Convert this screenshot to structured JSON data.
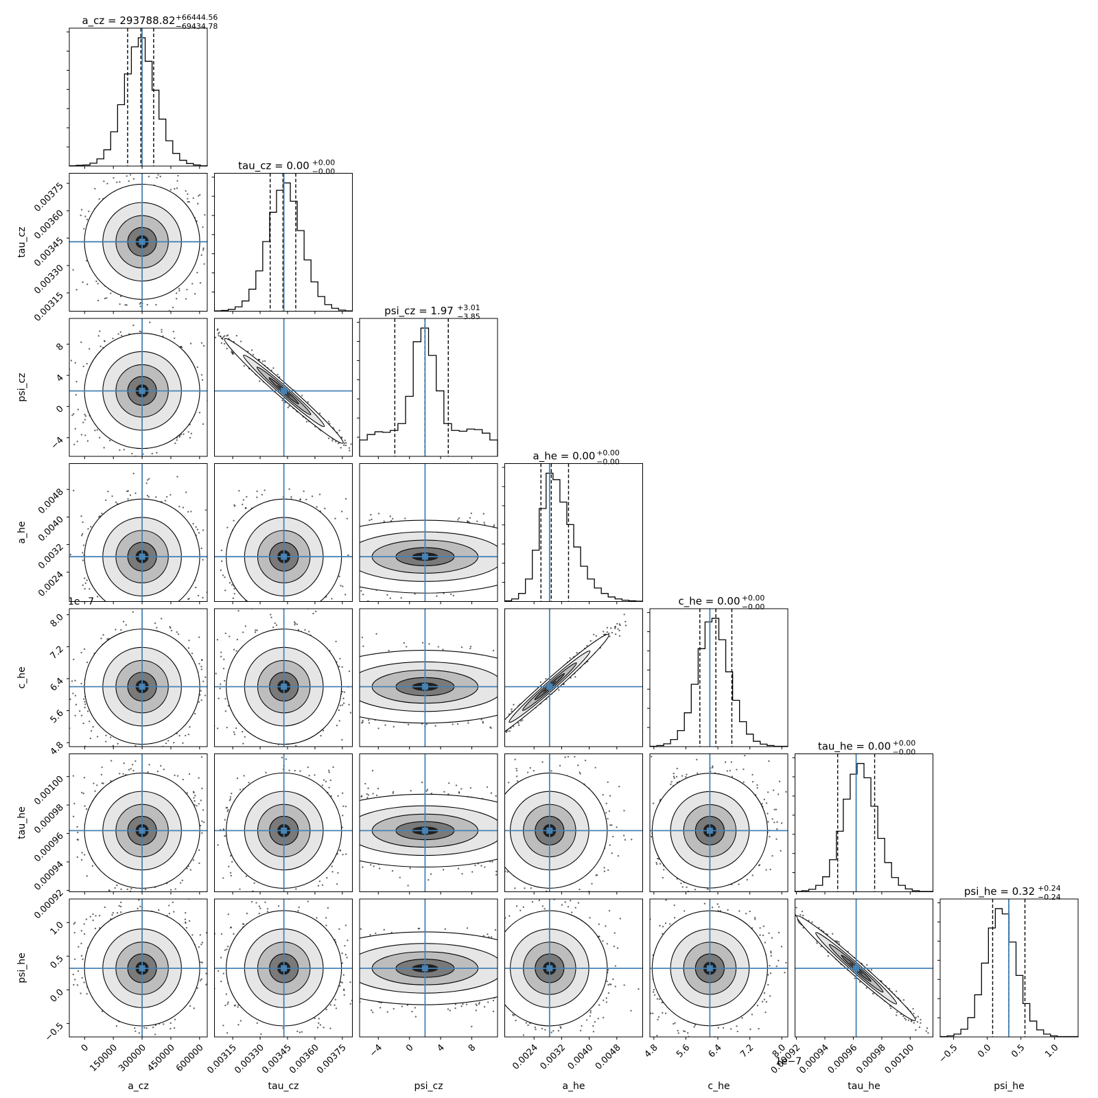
{
  "chart_data": {
    "type": "scatter",
    "plot_kind": "corner",
    "truth_color": "#4682b4",
    "params": [
      {
        "name": "a_cz",
        "label": "a_cz",
        "title": "a_cz = 293788.82",
        "title_sup": "+66444.56",
        "title_sub": "−69434.78",
        "range": [
          -80000,
          640000
        ],
        "ticks": [
          0,
          150000,
          300000,
          450000,
          600000
        ],
        "tick_labels": [
          "0",
          "150000",
          "300000",
          "450000",
          "600000"
        ],
        "truth": 300000,
        "quantiles": [
          224354.04,
          293788.82,
          360233.38
        ],
        "hist": [
          1,
          2,
          3,
          8,
          20,
          45,
          95,
          170,
          255,
          330,
          355,
          290,
          210,
          130,
          70,
          35,
          16,
          7,
          3,
          1
        ]
      },
      {
        "name": "tau_cz",
        "label": "tau_cz",
        "title": "tau_cz = 0.00",
        "title_sup": "+0.00",
        "title_sub": "−0.00",
        "range": [
          0.00305,
          0.003805
        ],
        "ticks": [
          0.00315,
          0.0033,
          0.00345,
          0.0036,
          0.00375
        ],
        "tick_labels": [
          "0.00315",
          "0.00330",
          "0.00345",
          "0.00360",
          "0.00375"
        ],
        "truth": 0.00343,
        "quantiles": [
          0.003355,
          0.003425,
          0.003495
        ],
        "hist": [
          1,
          2,
          5,
          12,
          28,
          60,
          110,
          190,
          270,
          330,
          350,
          300,
          220,
          140,
          80,
          40,
          18,
          8,
          3,
          1
        ]
      },
      {
        "name": "psi_cz",
        "label": "psi_cz",
        "title": "psi_cz = 1.97",
        "title_sup": "+3.01",
        "title_sub": "−3.85",
        "range": [
          -6.4,
          11.3
        ],
        "ticks": [
          -4,
          0,
          4,
          8
        ],
        "tick_labels": [
          "−4",
          "0",
          "4",
          "8"
        ],
        "truth": 2.0,
        "quantiles": [
          -1.88,
          1.97,
          4.98
        ],
        "hist": [
          60,
          80,
          90,
          88,
          95,
          120,
          220,
          420,
          470,
          370,
          240,
          120,
          95,
          92,
          100,
          98,
          85,
          60
        ]
      },
      {
        "name": "a_he",
        "label": "a_he",
        "title": "a_he = 0.00",
        "title_sup": "+0.00",
        "title_sub": "−0.00",
        "range": [
          0.00155,
          0.00555
        ],
        "ticks": [
          0.0024,
          0.0032,
          0.004,
          0.0048
        ],
        "tick_labels": [
          "0.0024",
          "0.0032",
          "0.0040",
          "0.0048"
        ],
        "truth": 0.00285,
        "quantiles": [
          0.0026,
          0.0029,
          0.0034
        ],
        "hist": [
          2,
          8,
          25,
          70,
          160,
          290,
          400,
          380,
          310,
          240,
          170,
          110,
          70,
          42,
          25,
          14,
          8,
          4,
          2,
          1
        ]
      },
      {
        "name": "c_he",
        "label": "c_he",
        "title": "c_he = 0.00",
        "title_sup": "+0.00",
        "title_sub": "−0.00",
        "range": [
          4.7,
          8.15
        ],
        "ticks": [
          4.8,
          5.6,
          6.4,
          7.2,
          8.0
        ],
        "tick_labels": [
          "4.8",
          "5.6",
          "6.4",
          "7.2",
          "8.0"
        ],
        "exp_label": "1e−7",
        "truth": 6.2,
        "quantiles": [
          5.95,
          6.35,
          6.75
        ],
        "hist": [
          1,
          3,
          8,
          20,
          45,
          95,
          175,
          275,
          350,
          360,
          300,
          210,
          130,
          70,
          35,
          15,
          7,
          3,
          1,
          1
        ]
      },
      {
        "name": "tau_he",
        "label": "tau_he",
        "title": "tau_he = 0.00",
        "title_sup": "+0.00",
        "title_sub": "−0.00",
        "range": [
          0.000919,
          0.001016
        ],
        "ticks": [
          0.00092,
          0.00094,
          0.00096,
          0.00098,
          0.001
        ],
        "tick_labels": [
          "0.00092",
          "0.00094",
          "0.00096",
          "0.00098",
          "0.00100"
        ],
        "truth": 0.000962,
        "quantiles": [
          0.000949,
          0.000962,
          0.000975
        ],
        "hist": [
          1,
          3,
          7,
          18,
          42,
          90,
          170,
          260,
          330,
          360,
          320,
          240,
          150,
          82,
          40,
          18,
          8,
          3,
          1,
          1
        ]
      },
      {
        "name": "psi_he",
        "label": "psi_he",
        "title": "psi_he = 0.32",
        "title_sup": "+0.24",
        "title_sub": "−0.24",
        "range": [
          -0.7,
          1.35
        ],
        "ticks": [
          -0.5,
          0.0,
          0.5,
          1.0
        ],
        "tick_labels": [
          "−0.5",
          "0.0",
          "0.5",
          "1.0"
        ],
        "truth": 0.32,
        "quantiles": [
          0.08,
          0.32,
          0.56
        ],
        "hist": [
          1,
          3,
          8,
          22,
          55,
          120,
          210,
          310,
          365,
          350,
          270,
          175,
          95,
          45,
          20,
          8,
          3,
          1,
          1,
          1
        ]
      }
    ],
    "correlations": [
      [
        0
      ],
      [
        0.05,
        0
      ],
      [
        0.0,
        -0.98,
        0
      ],
      [
        0.02,
        0.03,
        0.0,
        0
      ],
      [
        0.03,
        0.02,
        0.0,
        0.97,
        0
      ],
      [
        0.02,
        0.01,
        0.0,
        0.04,
        0.1,
        0
      ],
      [
        0.0,
        0.0,
        0.0,
        -0.05,
        -0.08,
        -0.99,
        0
      ]
    ]
  }
}
